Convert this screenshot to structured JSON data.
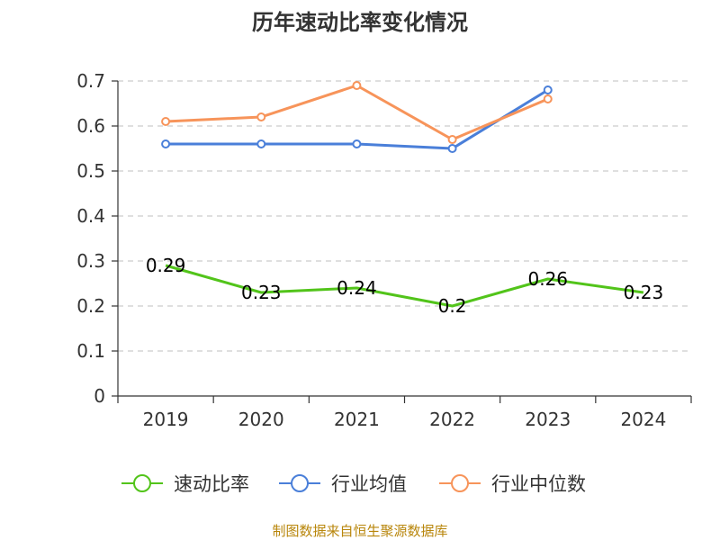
{
  "chart_data": {
    "type": "line",
    "title": "历年速动比率变化情况",
    "categories": [
      "2019",
      "2020",
      "2021",
      "2022",
      "2023",
      "2024"
    ],
    "ylim": [
      0,
      0.7
    ],
    "yticks": [
      "0",
      "0.1",
      "0.2",
      "0.3",
      "0.4",
      "0.5",
      "0.6",
      "0.7"
    ],
    "grid": true,
    "legend_position": "bottom",
    "series": [
      {
        "name": "速动比率",
        "color": "#52c41a",
        "values": [
          0.29,
          0.23,
          0.24,
          0.2,
          0.26,
          0.23
        ],
        "labels": [
          "0.29",
          "0.23",
          "0.24",
          "0.2",
          "0.26",
          "0.23"
        ],
        "show_points": false
      },
      {
        "name": "行业均值",
        "color": "#4a7fd9",
        "values": [
          0.56,
          0.56,
          0.56,
          0.55,
          0.68,
          null
        ],
        "show_points": true
      },
      {
        "name": "行业中位数",
        "color": "#f7945a",
        "values": [
          0.61,
          0.62,
          0.69,
          0.57,
          0.66,
          null
        ],
        "show_points": true
      }
    ]
  },
  "source": "制图数据来自恒生聚源数据库"
}
